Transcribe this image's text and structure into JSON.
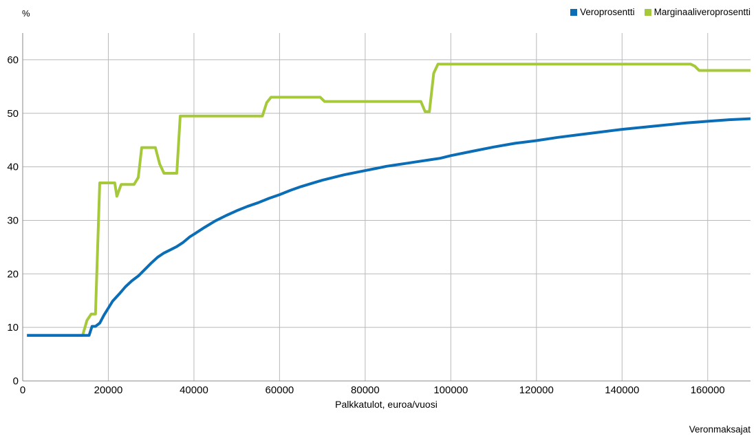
{
  "chart_data": {
    "type": "line",
    "unit_label": "%",
    "xlabel": "Palkkatulot, euroa/vuosi",
    "source": "Veronmaksajat",
    "xlim": [
      0,
      170000
    ],
    "ylim": [
      0,
      65
    ],
    "x_ticks": [
      0,
      20000,
      40000,
      60000,
      80000,
      100000,
      120000,
      140000,
      160000
    ],
    "y_ticks": [
      0,
      10,
      20,
      30,
      40,
      50,
      60
    ],
    "grid": true,
    "legend_position": "top-right",
    "series": [
      {
        "name": "Veroprosentti",
        "color": "#0a6db5",
        "points": [
          [
            1000,
            8.5
          ],
          [
            14500,
            8.5
          ],
          [
            15000,
            8.5
          ],
          [
            15500,
            8.5
          ],
          [
            16200,
            10.2
          ],
          [
            17000,
            10.2
          ],
          [
            18000,
            10.8
          ],
          [
            19000,
            12.3
          ],
          [
            20000,
            13.6
          ],
          [
            21000,
            14.9
          ],
          [
            22500,
            16.2
          ],
          [
            24000,
            17.6
          ],
          [
            25500,
            18.7
          ],
          [
            27000,
            19.6
          ],
          [
            28500,
            20.8
          ],
          [
            30000,
            22.0
          ],
          [
            31500,
            23.1
          ],
          [
            33000,
            23.9
          ],
          [
            34500,
            24.5
          ],
          [
            36000,
            25.1
          ],
          [
            37500,
            25.9
          ],
          [
            39000,
            26.9
          ],
          [
            40000,
            27.4
          ],
          [
            42500,
            28.7
          ],
          [
            45000,
            29.9
          ],
          [
            47500,
            30.9
          ],
          [
            50000,
            31.8
          ],
          [
            52500,
            32.6
          ],
          [
            55000,
            33.3
          ],
          [
            57500,
            34.1
          ],
          [
            60000,
            34.8
          ],
          [
            62500,
            35.6
          ],
          [
            65000,
            36.3
          ],
          [
            67500,
            36.9
          ],
          [
            70000,
            37.5
          ],
          [
            72500,
            38.0
          ],
          [
            75000,
            38.5
          ],
          [
            77500,
            38.9
          ],
          [
            80000,
            39.3
          ],
          [
            82500,
            39.7
          ],
          [
            85000,
            40.1
          ],
          [
            87500,
            40.4
          ],
          [
            90000,
            40.7
          ],
          [
            92500,
            41.0
          ],
          [
            95000,
            41.3
          ],
          [
            97500,
            41.6
          ],
          [
            100000,
            42.1
          ],
          [
            105000,
            42.9
          ],
          [
            110000,
            43.7
          ],
          [
            115000,
            44.4
          ],
          [
            120000,
            44.9
          ],
          [
            125000,
            45.5
          ],
          [
            130000,
            46.0
          ],
          [
            135000,
            46.5
          ],
          [
            140000,
            47.0
          ],
          [
            145000,
            47.4
          ],
          [
            150000,
            47.8
          ],
          [
            155000,
            48.2
          ],
          [
            160000,
            48.5
          ],
          [
            165000,
            48.8
          ],
          [
            170000,
            49.0
          ]
        ]
      },
      {
        "name": "Marginaaliveroprosentti",
        "color": "#a5c93a",
        "points": [
          [
            1000,
            8.5
          ],
          [
            14000,
            8.5
          ],
          [
            15000,
            11.3
          ],
          [
            16000,
            12.5
          ],
          [
            17000,
            12.5
          ],
          [
            18000,
            37.0
          ],
          [
            20500,
            37.0
          ],
          [
            21500,
            37.0
          ],
          [
            22000,
            34.5
          ],
          [
            23000,
            36.7
          ],
          [
            26000,
            36.7
          ],
          [
            27000,
            38.0
          ],
          [
            27800,
            43.6
          ],
          [
            29500,
            43.6
          ],
          [
            31000,
            43.6
          ],
          [
            32000,
            40.5
          ],
          [
            33000,
            38.8
          ],
          [
            36000,
            38.8
          ],
          [
            36800,
            49.5
          ],
          [
            56000,
            49.5
          ],
          [
            57000,
            52.0
          ],
          [
            58000,
            53.0
          ],
          [
            69500,
            53.0
          ],
          [
            70500,
            52.2
          ],
          [
            93000,
            52.2
          ],
          [
            94000,
            50.3
          ],
          [
            95000,
            50.3
          ],
          [
            96000,
            57.5
          ],
          [
            97000,
            59.2
          ],
          [
            156000,
            59.2
          ],
          [
            157000,
            58.8
          ],
          [
            158000,
            58.0
          ],
          [
            170000,
            58.0
          ]
        ]
      }
    ]
  }
}
